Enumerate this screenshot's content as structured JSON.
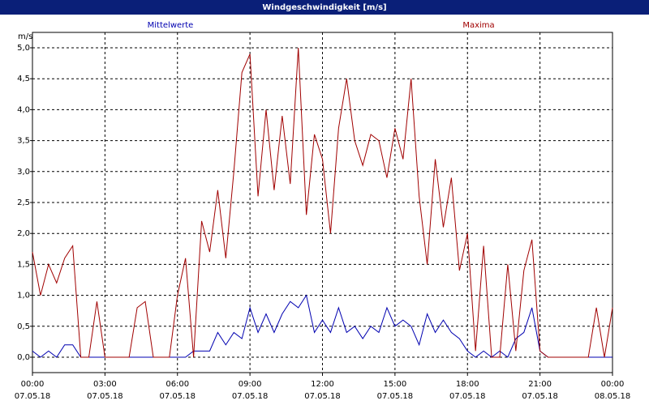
{
  "chart_data": {
    "type": "line",
    "title": "Windgeschwindigkeit [m/s]",
    "y_unit": "m/s",
    "x": [
      0,
      20,
      40,
      60,
      80,
      100,
      120,
      140,
      160,
      180,
      200,
      220,
      240,
      260,
      280,
      300,
      320,
      340,
      360,
      380,
      400,
      420,
      440,
      460,
      480,
      500,
      520,
      540,
      560,
      580,
      600,
      620,
      640,
      660,
      680,
      700,
      720,
      740,
      760,
      780,
      800,
      820,
      840,
      860,
      880,
      900,
      920,
      940,
      960,
      980,
      1000,
      1020,
      1040,
      1060,
      1080,
      1100,
      1120,
      1140,
      1160,
      1180,
      1200,
      1220,
      1240,
      1260,
      1280,
      1300,
      1320,
      1340,
      1360,
      1380,
      1400,
      1420,
      1440
    ],
    "series": [
      {
        "name": "Mittelwerte",
        "color": "#0000b0",
        "values": [
          0.1,
          0,
          0.1,
          0,
          0.2,
          0.2,
          0,
          0,
          0,
          0,
          0,
          0,
          0,
          0,
          0,
          0,
          0,
          0,
          0,
          0,
          0.1,
          0.1,
          0.1,
          0.4,
          0.2,
          0.4,
          0.3,
          0.8,
          0.4,
          0.7,
          0.4,
          0.7,
          0.9,
          0.8,
          1.0,
          0.4,
          0.6,
          0.4,
          0.8,
          0.4,
          0.5,
          0.3,
          0.5,
          0.4,
          0.8,
          0.5,
          0.6,
          0.5,
          0.2,
          0.7,
          0.4,
          0.6,
          0.4,
          0.3,
          0.1,
          0,
          0.1,
          0,
          0.1,
          0,
          0.3,
          0.4,
          0.8,
          0.1,
          0,
          0,
          0,
          0,
          0,
          0,
          0,
          0,
          0
        ]
      },
      {
        "name": "Maxima",
        "color": "#a00000",
        "values": [
          1.7,
          1.0,
          1.5,
          1.2,
          1.6,
          1.8,
          0,
          0,
          0.9,
          0,
          0,
          0,
          0,
          0.8,
          0.9,
          0,
          0,
          0,
          1.0,
          1.6,
          0,
          2.2,
          1.7,
          2.7,
          1.6,
          3.0,
          4.6,
          4.9,
          2.6,
          4.0,
          2.7,
          3.9,
          2.8,
          5.0,
          2.3,
          3.6,
          3.2,
          2.0,
          3.7,
          4.5,
          3.5,
          3.1,
          3.6,
          3.5,
          2.9,
          3.7,
          3.2,
          4.5,
          2.6,
          1.5,
          3.2,
          2.1,
          2.9,
          1.4,
          2.0,
          0.1,
          1.8,
          0,
          0,
          1.5,
          0.1,
          1.4,
          1.9,
          0.1,
          0,
          0,
          0,
          0,
          0,
          0,
          0.8,
          0,
          0.8
        ]
      }
    ],
    "xlim": [
      0,
      1440
    ],
    "xticks": [
      {
        "value": 0,
        "label": "00:00"
      },
      {
        "value": 180,
        "label": "03:00"
      },
      {
        "value": 360,
        "label": "06:00"
      },
      {
        "value": 540,
        "label": "09:00"
      },
      {
        "value": 720,
        "label": "12:00"
      },
      {
        "value": 900,
        "label": "15:00"
      },
      {
        "value": 1080,
        "label": "18:00"
      },
      {
        "value": 1260,
        "label": "21:00"
      },
      {
        "value": 1440,
        "label": "00:00"
      }
    ],
    "xtick_dates": [
      "07.05.18",
      "07.05.18",
      "07.05.18",
      "07.05.18",
      "07.05.18",
      "07.05.18",
      "07.05.18",
      "07.05.18",
      "08.05.18"
    ],
    "ylim": [
      0,
      5.25
    ],
    "yticks": [
      {
        "value": 0,
        "label": "0,0"
      },
      {
        "value": 0.5,
        "label": "0,5"
      },
      {
        "value": 1,
        "label": "1,0"
      },
      {
        "value": 1.5,
        "label": "1,5"
      },
      {
        "value": 2,
        "label": "2,0"
      },
      {
        "value": 2.5,
        "label": "2,5"
      },
      {
        "value": 3,
        "label": "3,0"
      },
      {
        "value": 3.5,
        "label": "3,5"
      },
      {
        "value": 4,
        "label": "4,0"
      },
      {
        "value": 4.5,
        "label": "4,5"
      },
      {
        "value": 5,
        "label": "5,0"
      }
    ],
    "grid": true
  }
}
